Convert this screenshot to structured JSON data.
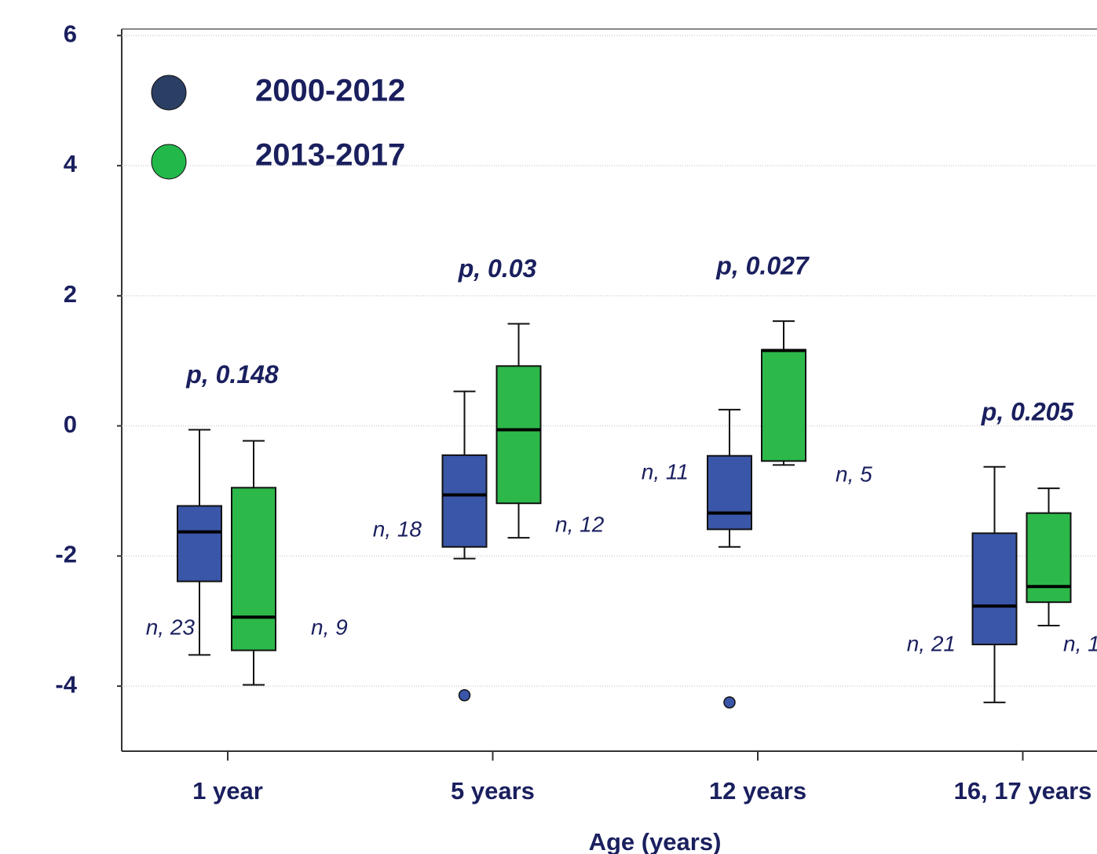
{
  "chart_data": {
    "type": "box",
    "x_label": "Age (years)",
    "categories": [
      "1 year",
      "5 years",
      "12 years",
      "16, 17 years"
    ],
    "p_labels": [
      "p, 0.148",
      "p, 0.03",
      "p, 0.027",
      "p, 0.205"
    ],
    "series": [
      {
        "name": "2000-2012",
        "color": "#3a56a8",
        "legend_color": "#2b3e63",
        "whisker_low": [
          -3.52,
          -2.04,
          -1.86,
          -4.25
        ],
        "q1": [
          -2.39,
          -1.86,
          -1.59,
          -3.36
        ],
        "median": [
          -1.63,
          -1.06,
          -1.34,
          -2.77
        ],
        "q3": [
          -1.23,
          -0.45,
          -0.46,
          -1.65
        ],
        "whisker_high": [
          -0.06,
          0.53,
          0.25,
          -0.63
        ],
        "outliers": [
          [],
          [
            -4.14
          ],
          [
            -4.25
          ],
          []
        ],
        "n_labels": [
          "n, 23",
          "n, 18",
          "n, 11",
          "n, 21"
        ]
      },
      {
        "name": "2013-2017",
        "color": "#2db84a",
        "legend_color": "#22b84a",
        "whisker_low": [
          -3.98,
          -1.72,
          -0.6,
          -3.07
        ],
        "q1": [
          -3.45,
          -1.19,
          -0.54,
          -2.71
        ],
        "median": [
          -2.94,
          -0.06,
          1.16,
          -2.47
        ],
        "q3": [
          -0.95,
          0.92,
          1.17,
          -1.34
        ],
        "whisker_high": [
          -0.23,
          1.57,
          1.61,
          -0.96
        ],
        "outliers": [
          [],
          [],
          [],
          []
        ],
        "n_labels": [
          "n, 9",
          "n, 12",
          "n, 5",
          "n, 1"
        ]
      }
    ],
    "ylim": [
      -5,
      6.1
    ],
    "yticks": [
      -4,
      -2,
      0,
      2,
      4,
      6
    ],
    "grid": true
  }
}
